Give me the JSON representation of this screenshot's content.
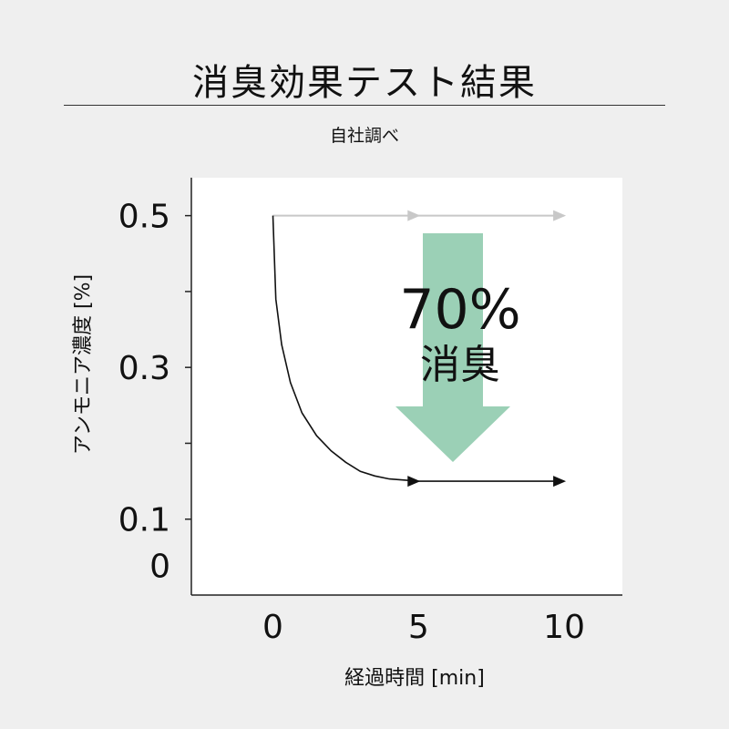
{
  "title": "消臭効果テスト結果",
  "subtitle": "自社調べ",
  "colors": {
    "background": "#efefef",
    "plot_bg": "#ffffff",
    "arrow": "#9bd0b6",
    "before_line": "#c8c8c8",
    "after_line": "#111111"
  },
  "chart_data": {
    "type": "line",
    "xlabel": "経過時間 [min]",
    "ylabel": "アンモニア濃度 [%]",
    "xlim": [
      -2.8,
      12
    ],
    "ylim": [
      -0.0,
      0.55
    ],
    "x_ticks": [
      0,
      5,
      10
    ],
    "y_ticks": [
      0.5,
      0.4,
      0.3,
      0.2,
      0.1
    ],
    "y_tick_labels": [
      "0.5",
      "",
      "0.3",
      "",
      "0.1"
    ],
    "y_zero_label": "0",
    "grid": false,
    "series": [
      {
        "role": "before",
        "color": "#c8c8c8",
        "x": [
          0,
          5,
          10
        ],
        "y": [
          0.5,
          0.5,
          0.5
        ]
      },
      {
        "role": "after",
        "color": "#111111",
        "x": [
          0,
          0.1,
          0.3,
          0.6,
          1,
          1.5,
          2,
          2.5,
          3,
          3.5,
          4,
          5,
          10
        ],
        "y": [
          0.5,
          0.39,
          0.33,
          0.28,
          0.24,
          0.21,
          0.19,
          0.175,
          0.163,
          0.157,
          0.153,
          0.15,
          0.15
        ]
      }
    ],
    "annotation": {
      "value": "70%",
      "label": "消臭"
    }
  }
}
